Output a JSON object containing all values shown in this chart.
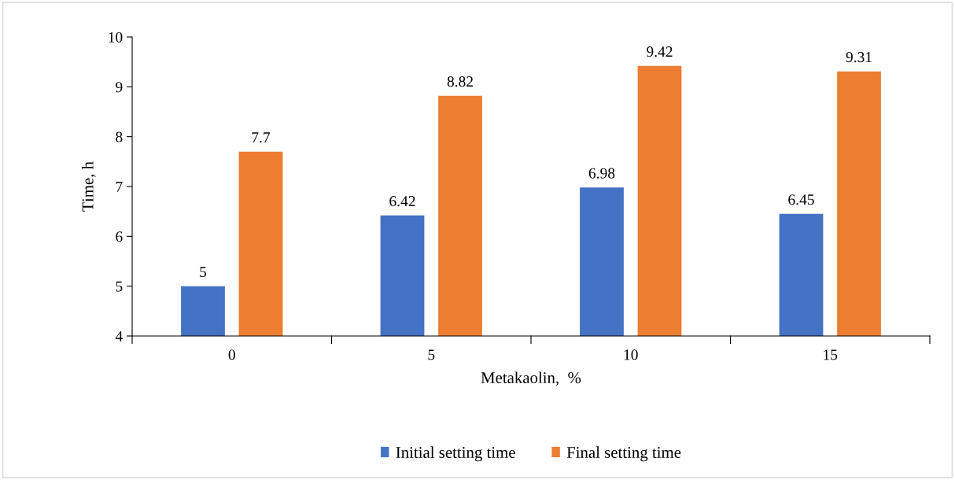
{
  "chart_data": {
    "type": "bar",
    "xlabel": "Metakaolin,  %",
    "ylabel": "Time, h",
    "categories": [
      "0",
      "5",
      "10",
      "15"
    ],
    "series": [
      {
        "name": "Initial setting time",
        "color": "#4472c4",
        "values": [
          5,
          6.42,
          6.98,
          6.45
        ]
      },
      {
        "name": "Final setting time",
        "color": "#ed7d31",
        "values": [
          7.7,
          8.82,
          9.42,
          9.31
        ]
      }
    ],
    "ylim": [
      4,
      10
    ],
    "yticks": [
      4,
      5,
      6,
      7,
      8,
      9,
      10
    ],
    "grid": false,
    "legend": "bottom",
    "data_labels": true
  }
}
